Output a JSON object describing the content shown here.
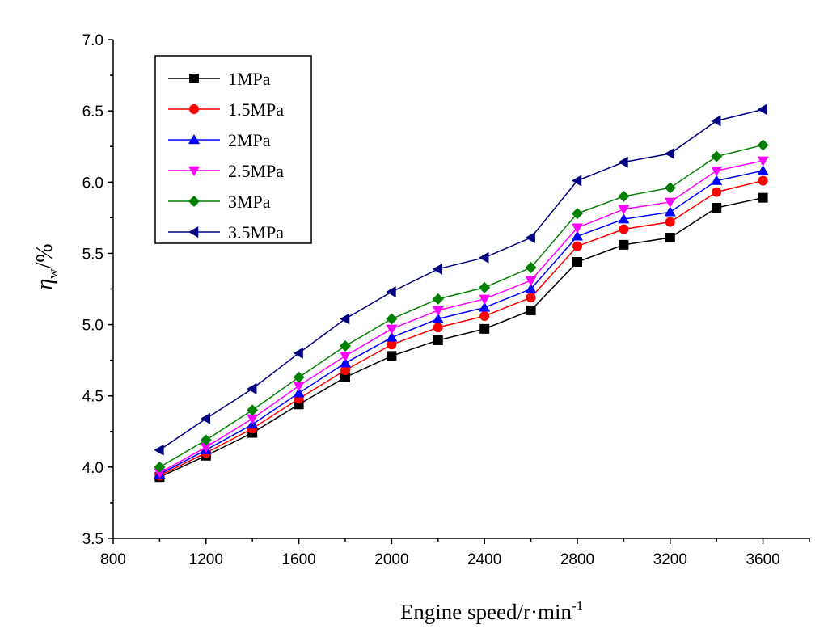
{
  "chart_data": {
    "type": "line",
    "title": "",
    "xlabel": "Engine speed/r·min",
    "xlabel_sup": "-1",
    "ylabel_symbol": "η",
    "ylabel_sub": "w",
    "ylabel_unit": "/%",
    "x": [
      1000,
      1200,
      1400,
      1600,
      1800,
      2000,
      2200,
      2400,
      2600,
      2800,
      3000,
      3200,
      3400,
      3600
    ],
    "xlim": [
      800,
      3800
    ],
    "ylim": [
      3.5,
      7.0
    ],
    "xticks": [
      "800",
      "1200",
      "1600",
      "2000",
      "2400",
      "2800",
      "3200",
      "3600"
    ],
    "yticks": [
      "3.5",
      "4.0",
      "4.5",
      "5.0",
      "5.5",
      "6.0",
      "6.5",
      "7.0"
    ],
    "grid": false,
    "legend_position": "top-left",
    "series": [
      {
        "name": "1MPa",
        "color": "#000000",
        "marker": "square",
        "values": [
          3.93,
          4.08,
          4.24,
          4.44,
          4.63,
          4.78,
          4.89,
          4.97,
          5.1,
          5.44,
          5.56,
          5.61,
          5.82,
          5.89
        ]
      },
      {
        "name": "1.5MPa",
        "color": "#ff0000",
        "marker": "circle",
        "values": [
          3.94,
          4.1,
          4.27,
          4.48,
          4.68,
          4.86,
          4.98,
          5.06,
          5.19,
          5.55,
          5.67,
          5.72,
          5.93,
          6.01
        ]
      },
      {
        "name": "2MPa",
        "color": "#0000ff",
        "marker": "triangle-up",
        "values": [
          3.95,
          4.12,
          4.3,
          4.52,
          4.73,
          4.91,
          5.04,
          5.12,
          5.25,
          5.62,
          5.74,
          5.79,
          6.01,
          6.08
        ]
      },
      {
        "name": "2.5MPa",
        "color": "#ff00ff",
        "marker": "triangle-down",
        "values": [
          3.96,
          4.14,
          4.34,
          4.57,
          4.78,
          4.97,
          5.1,
          5.18,
          5.31,
          5.68,
          5.81,
          5.86,
          6.08,
          6.15
        ]
      },
      {
        "name": "3MPa",
        "color": "#008000",
        "marker": "diamond",
        "values": [
          4.0,
          4.19,
          4.4,
          4.63,
          4.85,
          5.04,
          5.18,
          5.26,
          5.4,
          5.78,
          5.9,
          5.96,
          6.18,
          6.26
        ]
      },
      {
        "name": "3.5MPa",
        "color": "#000080",
        "marker": "triangle-left",
        "values": [
          4.12,
          4.34,
          4.55,
          4.8,
          5.04,
          5.23,
          5.39,
          5.47,
          5.61,
          6.01,
          6.14,
          6.2,
          6.43,
          6.51
        ]
      }
    ]
  }
}
